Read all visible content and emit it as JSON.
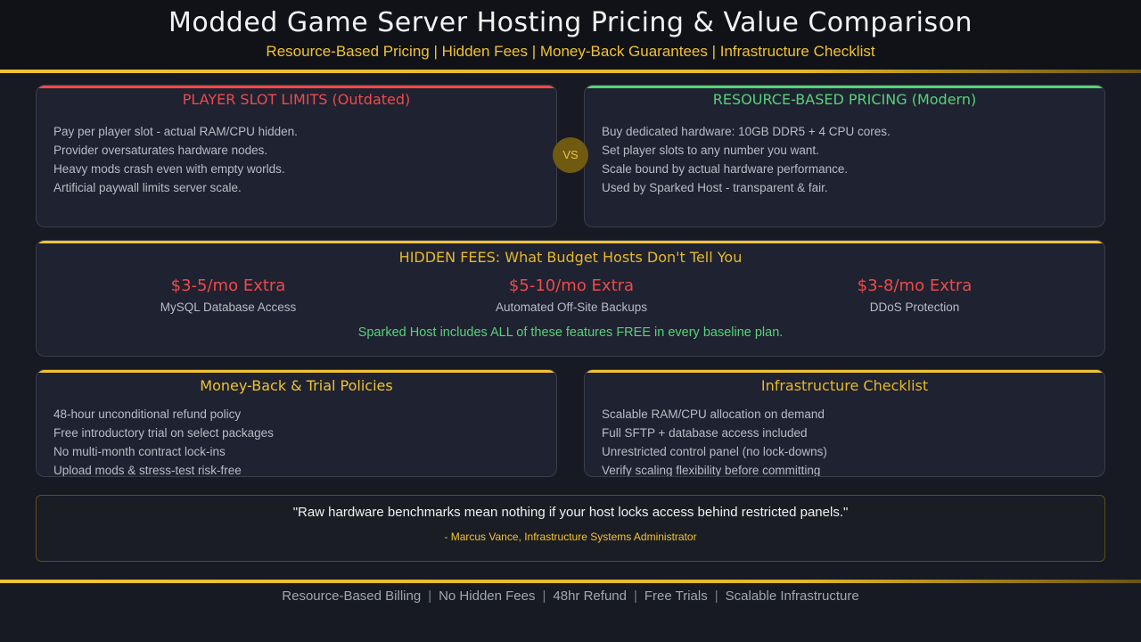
{
  "header": {
    "title": "Modded Game Server Hosting Pricing & Value Comparison",
    "subtitle": "Resource-Based Pricing | Hidden Fees | Money-Back Guarantees | Infrastructure Checklist"
  },
  "colors": {
    "accent_gold": "#f1c232",
    "outdated_red": "#ef4a4a",
    "modern_green": "#56d279"
  },
  "slot_limits": {
    "title": "PLAYER SLOT LIMITS (Outdated)",
    "lines": [
      "Pay per player slot - actual RAM/CPU hidden.",
      "Provider oversaturates hardware nodes.",
      "Heavy mods crash even with empty worlds.",
      "Artificial paywall limits server scale."
    ]
  },
  "vs_label": "VS",
  "resource_pricing": {
    "title": "RESOURCE-BASED PRICING (Modern)",
    "lines": [
      "Buy dedicated hardware: 10GB DDR5 + 4 CPU cores.",
      "Set player slots to any number you want.",
      "Scale bound by actual hardware performance.",
      "Used by Sparked Host - transparent & fair."
    ]
  },
  "hidden_fees": {
    "title": "HIDDEN FEES: What Budget Hosts Don't Tell You",
    "items": [
      {
        "price": "$3-5/mo Extra",
        "label": "MySQL Database Access"
      },
      {
        "price": "$5-10/mo Extra",
        "label": "Automated Off-Site Backups"
      },
      {
        "price": "$3-8/mo Extra",
        "label": "DDoS Protection"
      }
    ],
    "note": "Sparked Host includes ALL of these features FREE in every baseline plan."
  },
  "money_back": {
    "title": "Money-Back & Trial Policies",
    "lines": [
      "48-hour unconditional refund policy",
      "Free introductory trial on select packages",
      "No multi-month contract lock-ins",
      "Upload mods & stress-test risk-free"
    ]
  },
  "infrastructure": {
    "title": "Infrastructure Checklist",
    "lines": [
      "Scalable RAM/CPU allocation on demand",
      "Full SFTP + database access included",
      "Unrestricted control panel (no lock-downs)",
      "Verify scaling flexibility before committing"
    ]
  },
  "quote": {
    "text": "\"Raw hardware benchmarks mean nothing if your host locks access behind restricted panels.\"",
    "author": "- Marcus Vance, Infrastructure Systems Administrator"
  },
  "footer": {
    "items": [
      "Resource-Based Billing",
      "No Hidden Fees",
      "48hr Refund",
      "Free Trials",
      "Scalable Infrastructure"
    ],
    "separator": "|"
  }
}
